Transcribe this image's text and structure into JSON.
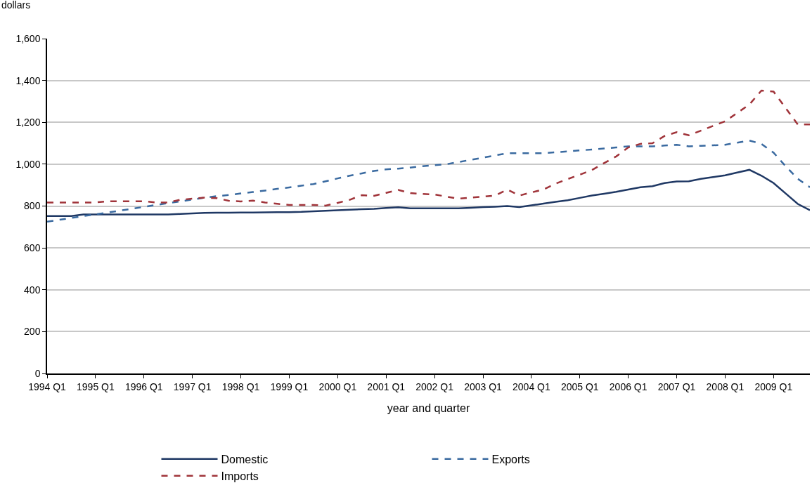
{
  "chart_data": {
    "type": "line",
    "xlabel": "year and quarter",
    "ylabel": "dollars",
    "categories": [
      "1994 Q1",
      null,
      null,
      null,
      "1995 Q1",
      null,
      null,
      null,
      "1996 Q1",
      null,
      null,
      null,
      "1997 Q1",
      null,
      null,
      null,
      "1998 Q1",
      null,
      null,
      null,
      "1999 Q1",
      null,
      null,
      null,
      "2000 Q1",
      null,
      null,
      null,
      "2001 Q1",
      null,
      null,
      null,
      "2002 Q1",
      null,
      null,
      null,
      "2003 Q1",
      null,
      null,
      null,
      "2004 Q1",
      null,
      null,
      null,
      "2005 Q1",
      null,
      null,
      null,
      "2006 Q1",
      null,
      null,
      null,
      "2007 Q1",
      null,
      null,
      null,
      "2008 Q1",
      null,
      null,
      null,
      "2009 Q1",
      null,
      null,
      null
    ],
    "ylim": [
      0,
      1600
    ],
    "yticks": [
      {
        "value": 0,
        "label": "0"
      },
      {
        "value": 200,
        "label": "200"
      },
      {
        "value": 400,
        "label": "400"
      },
      {
        "value": 600,
        "label": "600"
      },
      {
        "value": 800,
        "label": "800"
      },
      {
        "value": 1000,
        "label": "1,000"
      },
      {
        "value": 1200,
        "label": "1,200"
      },
      {
        "value": 1400,
        "label": "1,400"
      },
      {
        "value": 1600,
        "label": "1,600"
      }
    ],
    "grid": "y",
    "legend": "bottom",
    "marker": "none",
    "series": [
      {
        "name": "Domestic",
        "color": "#1f3864",
        "line_style": "solid",
        "values": [
          752,
          752,
          752,
          760,
          760,
          760,
          760,
          760,
          760,
          760,
          760,
          762,
          765,
          767,
          768,
          768,
          769,
          769,
          770,
          771,
          771,
          772,
          775,
          777,
          780,
          782,
          785,
          787,
          791,
          794,
          789,
          789,
          789,
          789,
          789,
          792,
          795,
          797,
          800,
          795,
          803,
          812,
          820,
          828,
          839,
          850,
          859,
          868,
          879,
          890,
          895,
          910,
          917,
          918,
          930,
          938,
          947,
          960,
          973,
          945,
          910,
          860,
          810,
          780
        ]
      },
      {
        "name": "Exports",
        "color": "#3a6aa0",
        "line_style": "dashed",
        "values": [
          725,
          734,
          743,
          752,
          760,
          769,
          778,
          787,
          796,
          805,
          814,
          822,
          831,
          840,
          847,
          853,
          860,
          867,
          874,
          882,
          889,
          897,
          905,
          918,
          932,
          945,
          956,
          968,
          975,
          979,
          984,
          990,
          995,
          1000,
          1010,
          1021,
          1031,
          1042,
          1052,
          1052,
          1052,
          1052,
          1057,
          1061,
          1066,
          1070,
          1075,
          1080,
          1085,
          1085,
          1085,
          1089,
          1093,
          1085,
          1088,
          1090,
          1093,
          1103,
          1113,
          1097,
          1055,
          990,
          930,
          890
        ]
      },
      {
        "name": "Imports",
        "color": "#a0343a",
        "line_style": "dashed",
        "values": [
          817,
          817,
          817,
          817,
          817,
          823,
          823,
          823,
          823,
          817,
          817,
          830,
          835,
          840,
          838,
          825,
          822,
          826,
          817,
          811,
          805,
          805,
          805,
          802,
          815,
          830,
          852,
          849,
          863,
          877,
          862,
          858,
          855,
          845,
          835,
          840,
          845,
          850,
          879,
          850,
          865,
          879,
          907,
          929,
          950,
          972,
          1005,
          1037,
          1080,
          1097,
          1100,
          1135,
          1153,
          1138,
          1160,
          1183,
          1205,
          1245,
          1285,
          1352,
          1347,
          1268,
          1190,
          1190
        ]
      }
    ]
  }
}
